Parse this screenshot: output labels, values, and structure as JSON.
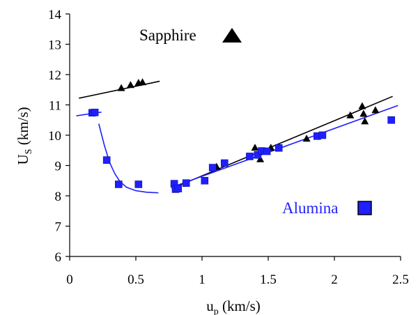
{
  "chart_data": {
    "type": "scatter",
    "xlabel": {
      "main": "u",
      "sub": "p",
      "unit": " (km/s)"
    },
    "ylabel": {
      "main": "U",
      "sub": "S",
      "unit": " (km/s)"
    },
    "xlim": [
      0,
      2.5
    ],
    "ylim": [
      6,
      14
    ],
    "xticks": [
      0,
      0.5,
      1,
      1.5,
      2,
      2.5
    ],
    "xtick_labels": [
      "0",
      "0.5",
      "1",
      "1.5",
      "2",
      "2.5"
    ],
    "yticks": [
      6,
      7,
      8,
      9,
      10,
      11,
      12,
      13,
      14
    ],
    "ytick_labels": [
      "6",
      "7",
      "8",
      "9",
      "10",
      "11",
      "12",
      "13",
      "14"
    ],
    "grid": false,
    "colors": {
      "sapphire": "#000000",
      "alumina": "#1f1fff",
      "alumina_edge": "#1010a0"
    },
    "series": [
      {
        "name": "Sapphire",
        "marker": "triangle",
        "points": [
          [
            0.39,
            11.55
          ],
          [
            0.46,
            11.65
          ],
          [
            0.52,
            11.72
          ],
          [
            0.55,
            11.74
          ],
          [
            1.11,
            8.95
          ],
          [
            1.4,
            9.58
          ],
          [
            1.44,
            9.2
          ],
          [
            1.52,
            9.58
          ],
          [
            1.79,
            9.88
          ],
          [
            2.12,
            10.65
          ],
          [
            2.21,
            10.95
          ],
          [
            2.22,
            10.7
          ],
          [
            2.23,
            10.45
          ],
          [
            2.31,
            10.82
          ]
        ],
        "fits": [
          {
            "x": [
              0.07,
              0.68
            ],
            "y": [
              11.22,
              11.78
            ]
          },
          {
            "x": [
              0.77,
              2.44
            ],
            "y": [
              8.24,
              11.28
            ]
          }
        ]
      },
      {
        "name": "Alumina",
        "marker": "square",
        "points": [
          [
            0.17,
            10.74
          ],
          [
            0.19,
            10.75
          ],
          [
            0.28,
            9.18
          ],
          [
            0.37,
            8.38
          ],
          [
            0.52,
            8.38
          ],
          [
            0.79,
            8.4
          ],
          [
            0.8,
            8.22
          ],
          [
            0.82,
            8.24
          ],
          [
            0.88,
            8.42
          ],
          [
            1.02,
            8.5
          ],
          [
            1.08,
            8.93
          ],
          [
            1.17,
            9.08
          ],
          [
            1.36,
            9.3
          ],
          [
            1.42,
            9.35
          ],
          [
            1.45,
            9.48
          ],
          [
            1.49,
            9.47
          ],
          [
            1.58,
            9.58
          ],
          [
            1.87,
            9.97
          ],
          [
            1.91,
            10.0
          ],
          [
            2.43,
            10.5
          ]
        ],
        "fits": [
          {
            "x": [
              0.05,
              0.24
            ],
            "y": [
              10.64,
              10.76
            ]
          },
          {
            "x": [
              0.77,
              2.48
            ],
            "y": [
              8.28,
              10.98
            ]
          }
        ],
        "curve": [
          [
            0.22,
            10.38
          ],
          [
            0.26,
            9.7
          ],
          [
            0.3,
            9.12
          ],
          [
            0.34,
            8.74
          ],
          [
            0.38,
            8.47
          ],
          [
            0.43,
            8.28
          ],
          [
            0.5,
            8.17
          ],
          [
            0.58,
            8.12
          ],
          [
            0.67,
            8.1
          ]
        ]
      }
    ]
  }
}
